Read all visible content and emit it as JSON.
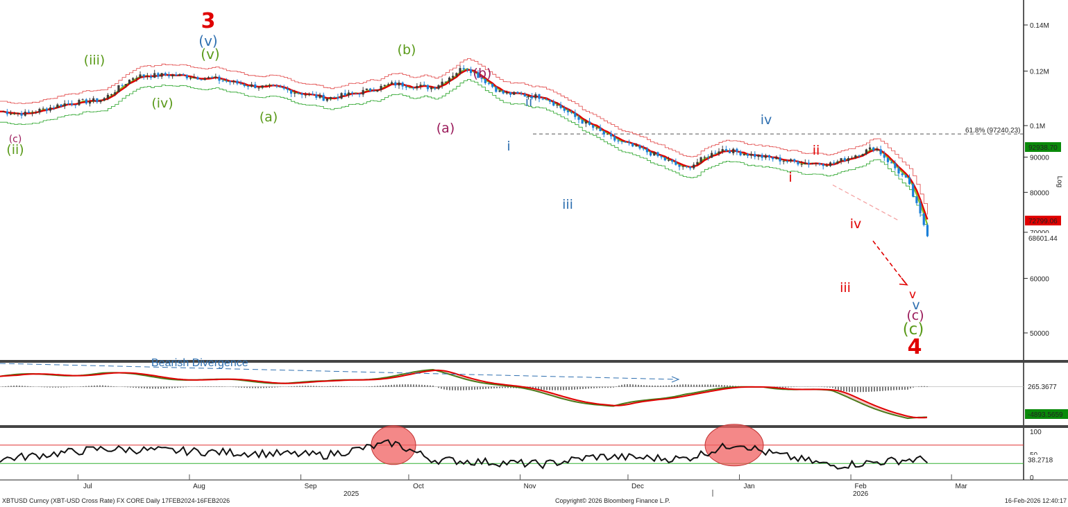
{
  "chart_data": [
    {
      "type": "line",
      "subtype": "candlestick",
      "panel": "price",
      "scale": "log",
      "x_ticks": [
        "Jul",
        "Aug",
        "Sep",
        "Oct",
        "Nov",
        "Dec",
        "Jan",
        "Feb",
        "Mar"
      ],
      "x_year_labels": [
        "2025",
        "2026"
      ],
      "y_ticks": [
        "0.14M",
        "0.12M",
        "0.1M",
        "90000",
        "80000",
        "70000",
        "60000",
        "50000"
      ],
      "axis_title": "Log",
      "series": [
        {
          "role": "close",
          "color": "#3b3b3b",
          "x": [
            "2025-06-01",
            "2025-06-10",
            "2025-06-20",
            "2025-07-01",
            "2025-07-10",
            "2025-07-20",
            "2025-08-01",
            "2025-08-10",
            "2025-08-20",
            "2025-09-01",
            "2025-09-10",
            "2025-09-20",
            "2025-10-01",
            "2025-10-10",
            "2025-10-20",
            "2025-11-01",
            "2025-11-10",
            "2025-11-20",
            "2025-12-01",
            "2025-12-10",
            "2025-12-20",
            "2026-01-01",
            "2026-01-10",
            "2026-01-20",
            "2026-02-01",
            "2026-02-10",
            "2026-02-16"
          ],
          "y": [
            105000,
            104000,
            107500,
            109000,
            118000,
            118500,
            117000,
            114500,
            113000,
            109500,
            111500,
            115000,
            113500,
            122000,
            111500,
            110000,
            102500,
            95500,
            91000,
            86500,
            92500,
            90000,
            88500,
            88000,
            93000,
            83000,
            68600
          ]
        },
        {
          "role": "moving-average-red",
          "color": "#e00000"
        },
        {
          "role": "moving-average-green",
          "color": "#88c020"
        }
      ],
      "price_labels": [
        {
          "text": "92938.70",
          "bg": "#0a8a0a"
        },
        {
          "text": "72799.06",
          "bg": "#e00000"
        },
        {
          "text": "68601.44",
          "bg": "#ffffff"
        }
      ],
      "fib_label": "61.8% (97240.23)",
      "wave_labels": [
        {
          "text": "3",
          "color": "#e00000"
        },
        {
          "text": "(v)",
          "color": "#2e6fb0"
        },
        {
          "text": "(v)",
          "color": "#5a9a1a"
        },
        {
          "text": "(iii)",
          "color": "#5a9a1a"
        },
        {
          "text": "(iv)",
          "color": "#5a9a1a"
        },
        {
          "text": "(c)",
          "color": "#9a1a5a"
        },
        {
          "text": "(ii)",
          "color": "#5a9a1a"
        },
        {
          "text": "(a)",
          "color": "#5a9a1a"
        },
        {
          "text": "(b)",
          "color": "#5a9a1a"
        },
        {
          "text": "(b)",
          "color": "#9a1a5a"
        },
        {
          "text": "(a)",
          "color": "#9a1a5a"
        },
        {
          "text": "ii",
          "color": "#2e6fb0"
        },
        {
          "text": "i",
          "color": "#2e6fb0"
        },
        {
          "text": "iii",
          "color": "#2e6fb0"
        },
        {
          "text": "iv",
          "color": "#2e6fb0"
        },
        {
          "text": "ii",
          "color": "#e00000"
        },
        {
          "text": "i",
          "color": "#e00000"
        },
        {
          "text": "iii",
          "color": "#e00000"
        },
        {
          "text": "iv",
          "color": "#e00000"
        },
        {
          "text": "v",
          "color": "#e00000"
        },
        {
          "text": "v",
          "color": "#2e6fb0"
        },
        {
          "text": "(c)",
          "color": "#9a1a5a"
        },
        {
          "text": "(c)",
          "color": "#5a9a1a"
        },
        {
          "text": "4",
          "color": "#e00000"
        }
      ]
    },
    {
      "type": "line",
      "panel": "macd",
      "annotation": "Bearish Divergence",
      "value_labels": [
        {
          "text": "265.3677",
          "bg": "#ffffff"
        },
        {
          "text": "-4893.5659",
          "bg": "#0a8a0a"
        }
      ],
      "series": [
        {
          "role": "macd",
          "color": "#4a7a1a",
          "x": [
            "2025-06-01",
            "2025-07-01",
            "2025-08-01",
            "2025-09-01",
            "2025-10-01",
            "2025-11-01",
            "2025-11-20",
            "2025-12-10",
            "2026-01-01",
            "2026-01-20",
            "2026-02-10"
          ],
          "y": [
            2500,
            3300,
            1500,
            1000,
            3800,
            -1800,
            -5000,
            -1500,
            200,
            -1300,
            -7800
          ]
        },
        {
          "role": "signal",
          "color": "#e00000"
        }
      ]
    },
    {
      "type": "line",
      "panel": "rsi",
      "ylim": [
        0,
        100
      ],
      "y_ticks": [
        "100",
        "50",
        "0"
      ],
      "value_label": {
        "text": "38.2718",
        "bg": "#ffffff"
      },
      "thresholds": [
        {
          "value": 70,
          "color": "#e03030"
        },
        {
          "value": 30,
          "color": "#30b030"
        }
      ],
      "series": [
        {
          "role": "rsi",
          "color": "#111111",
          "x": [
            "2025-06-01",
            "2025-07-01",
            "2025-08-01",
            "2025-09-01",
            "2025-09-20",
            "2025-10-01",
            "2025-11-01",
            "2025-11-15",
            "2025-12-10",
            "2025-12-25",
            "2026-01-01",
            "2026-01-20",
            "2026-02-10"
          ],
          "y": [
            38,
            62,
            55,
            48,
            75,
            38,
            28,
            45,
            40,
            75,
            55,
            25,
            38.27
          ]
        }
      ]
    }
  ],
  "footer": {
    "left": "XBTUSD Curncy (XBT-USD Cross Rate) FX CORE Daily 17FEB2024-16FEB2026",
    "center": "Copyright© 2026 Bloomberg Finance L.P.",
    "right": "16-Feb-2026 12:40:17"
  }
}
